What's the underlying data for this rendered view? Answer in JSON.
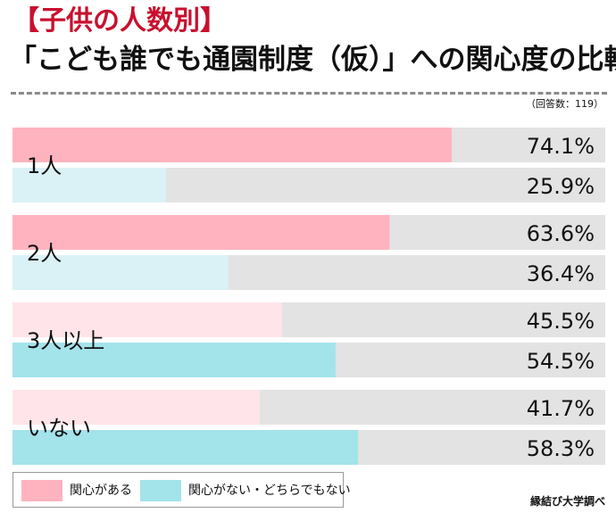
{
  "chart_data": {
    "type": "bar",
    "orientation": "horizontal-stacked-100",
    "subtitle": "【子供の人数別】",
    "title": "「こども誰でも通園制度（仮）」への関心度の比較",
    "sample_note": "（回答数：119）",
    "categories": [
      "1人",
      "2人",
      "3人以上",
      "いない"
    ],
    "series": [
      {
        "name": "関心がある",
        "values": [
          74.1,
          63.6,
          45.5,
          41.7
        ],
        "labels": [
          "74.1%",
          "63.6%",
          "45.5%",
          "41.7%"
        ],
        "colors": [
          "#ffb3bf",
          "#ffb3bf",
          "#ffe4e9",
          "#ffe4e9"
        ]
      },
      {
        "name": "関心がない・どちらでもない",
        "values": [
          25.9,
          36.4,
          54.5,
          58.3
        ],
        "labels": [
          "25.9%",
          "36.4%",
          "54.5%",
          "58.3%"
        ],
        "colors": [
          "#daf1f6",
          "#daf1f6",
          "#a3e3ea",
          "#a3e3ea"
        ]
      }
    ],
    "xlim": [
      0,
      100
    ],
    "track_color": "#e3e3e3",
    "legend": [
      {
        "label": "関心がある",
        "color": "#ffb3bf"
      },
      {
        "label": "関心がない・どちらでもない",
        "color": "#a3e3ea"
      }
    ],
    "legend_position": "bottom-left",
    "grid": false
  },
  "source": "縁結び大学調べ"
}
